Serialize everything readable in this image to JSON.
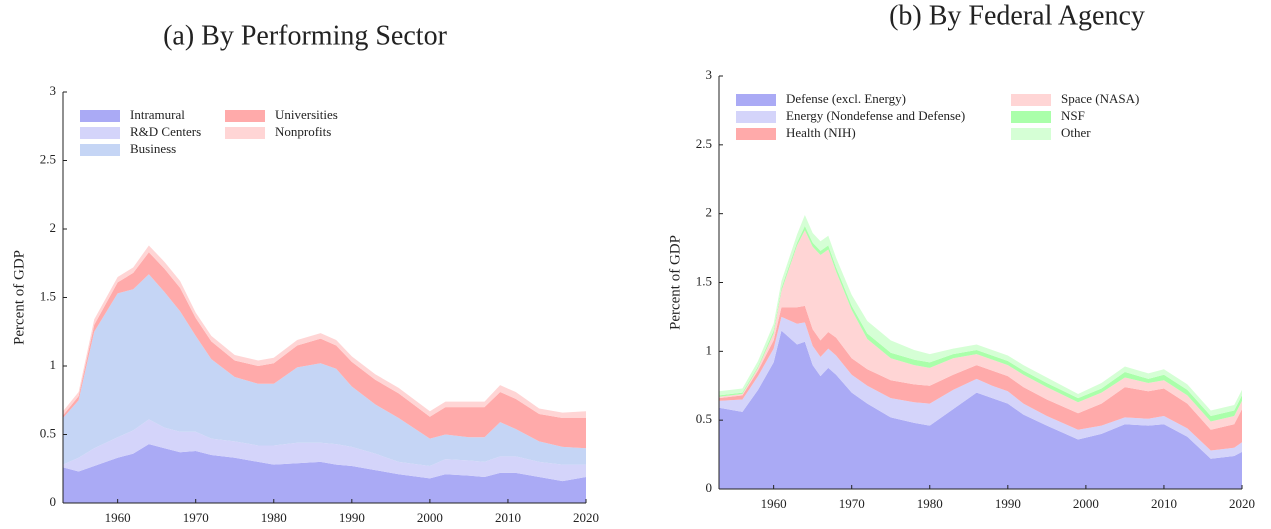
{
  "chart_data": [
    {
      "type": "stacked-area",
      "title": "(a) By Performing Sector",
      "y_label": "Percent of GDP",
      "x": [
        1953,
        1955,
        1957,
        1960,
        1962,
        1964,
        1966,
        1968,
        1970,
        1972,
        1975,
        1978,
        1980,
        1983,
        1986,
        1988,
        1990,
        1993,
        1996,
        2000,
        2002,
        2005,
        2007,
        2009,
        2011,
        2014,
        2017,
        2020
      ],
      "series": [
        {
          "name": "Intramural",
          "color": "#aaaaf5",
          "values": [
            0.26,
            0.23,
            0.27,
            0.33,
            0.36,
            0.43,
            0.4,
            0.37,
            0.38,
            0.35,
            0.33,
            0.3,
            0.28,
            0.29,
            0.3,
            0.28,
            0.27,
            0.24,
            0.21,
            0.18,
            0.21,
            0.2,
            0.19,
            0.22,
            0.22,
            0.19,
            0.16,
            0.19
          ]
        },
        {
          "name": "R&D Centers",
          "color": "#d4d4fa",
          "values": [
            0.02,
            0.1,
            0.13,
            0.15,
            0.17,
            0.18,
            0.15,
            0.15,
            0.14,
            0.12,
            0.12,
            0.12,
            0.14,
            0.15,
            0.14,
            0.15,
            0.14,
            0.12,
            0.09,
            0.09,
            0.11,
            0.11,
            0.11,
            0.12,
            0.12,
            0.11,
            0.12,
            0.09
          ]
        },
        {
          "name": "Business",
          "color": "#c5d5f5",
          "values": [
            0.34,
            0.42,
            0.85,
            1.05,
            1.03,
            1.06,
            0.99,
            0.88,
            0.7,
            0.58,
            0.47,
            0.45,
            0.45,
            0.55,
            0.58,
            0.55,
            0.44,
            0.36,
            0.32,
            0.2,
            0.18,
            0.17,
            0.18,
            0.25,
            0.2,
            0.15,
            0.13,
            0.12
          ]
        },
        {
          "name": "Universities",
          "color": "#ffaaaa",
          "values": [
            0.02,
            0.03,
            0.05,
            0.08,
            0.12,
            0.16,
            0.17,
            0.17,
            0.13,
            0.13,
            0.12,
            0.13,
            0.15,
            0.16,
            0.18,
            0.17,
            0.18,
            0.18,
            0.18,
            0.16,
            0.2,
            0.22,
            0.22,
            0.22,
            0.22,
            0.2,
            0.21,
            0.22
          ]
        },
        {
          "name": "Nonprofits",
          "color": "#ffd5d5",
          "values": [
            0.03,
            0.03,
            0.04,
            0.04,
            0.04,
            0.05,
            0.05,
            0.05,
            0.04,
            0.04,
            0.04,
            0.04,
            0.04,
            0.04,
            0.04,
            0.04,
            0.04,
            0.04,
            0.04,
            0.04,
            0.04,
            0.04,
            0.04,
            0.05,
            0.05,
            0.04,
            0.04,
            0.05
          ]
        }
      ],
      "xlim": [
        1953,
        2020
      ],
      "xticks": [
        1960,
        1970,
        1980,
        1990,
        2000,
        2010,
        2020
      ],
      "ylim": [
        0,
        3
      ],
      "yticks": [
        0,
        0.5,
        1,
        1.5,
        2,
        2.5,
        3
      ]
    },
    {
      "type": "stacked-area",
      "title": "(b) By Federal Agency",
      "y_label": "Percent of GDP",
      "x": [
        1953,
        1956,
        1958,
        1960,
        1961,
        1963,
        1964,
        1965,
        1966,
        1967,
        1968,
        1970,
        1972,
        1975,
        1978,
        1980,
        1983,
        1986,
        1988,
        1990,
        1992,
        1995,
        1999,
        2002,
        2005,
        2008,
        2010,
        2013,
        2016,
        2019,
        2020
      ],
      "series": [
        {
          "name": "Defense (excl. Energy)",
          "color": "#aaaaf5",
          "values": [
            0.59,
            0.56,
            0.72,
            0.92,
            1.15,
            1.05,
            1.07,
            0.9,
            0.82,
            0.88,
            0.83,
            0.7,
            0.62,
            0.52,
            0.48,
            0.46,
            0.58,
            0.7,
            0.66,
            0.62,
            0.54,
            0.46,
            0.36,
            0.4,
            0.47,
            0.46,
            0.47,
            0.38,
            0.22,
            0.24,
            0.27
          ]
        },
        {
          "name": "Energy (Nondefense and Defense)",
          "color": "#d4d4fa",
          "values": [
            0.05,
            0.09,
            0.1,
            0.1,
            0.1,
            0.15,
            0.14,
            0.14,
            0.14,
            0.14,
            0.14,
            0.13,
            0.13,
            0.14,
            0.15,
            0.16,
            0.14,
            0.1,
            0.09,
            0.09,
            0.08,
            0.07,
            0.07,
            0.06,
            0.05,
            0.05,
            0.06,
            0.06,
            0.06,
            0.06,
            0.07
          ]
        },
        {
          "name": "Health (NIH)",
          "color": "#ffaaaa",
          "values": [
            0.02,
            0.03,
            0.04,
            0.06,
            0.07,
            0.12,
            0.12,
            0.12,
            0.12,
            0.12,
            0.13,
            0.12,
            0.12,
            0.13,
            0.13,
            0.13,
            0.11,
            0.1,
            0.11,
            0.11,
            0.12,
            0.12,
            0.12,
            0.16,
            0.22,
            0.2,
            0.2,
            0.18,
            0.15,
            0.17,
            0.24
          ]
        },
        {
          "name": "Space (NASA)",
          "color": "#ffd5d5",
          "values": [
            0.01,
            0.01,
            0.02,
            0.05,
            0.12,
            0.45,
            0.55,
            0.6,
            0.62,
            0.6,
            0.48,
            0.35,
            0.22,
            0.16,
            0.14,
            0.13,
            0.12,
            0.08,
            0.08,
            0.08,
            0.09,
            0.09,
            0.08,
            0.08,
            0.07,
            0.06,
            0.06,
            0.06,
            0.06,
            0.06,
            0.06
          ]
        },
        {
          "name": "NSF",
          "color": "#aaffaa",
          "values": [
            0.01,
            0.01,
            0.01,
            0.02,
            0.02,
            0.02,
            0.03,
            0.03,
            0.03,
            0.03,
            0.03,
            0.03,
            0.04,
            0.04,
            0.04,
            0.04,
            0.03,
            0.03,
            0.03,
            0.03,
            0.03,
            0.03,
            0.03,
            0.03,
            0.04,
            0.03,
            0.04,
            0.04,
            0.04,
            0.04,
            0.04
          ]
        },
        {
          "name": "Other",
          "color": "#d5ffd5",
          "values": [
            0.03,
            0.03,
            0.04,
            0.05,
            0.05,
            0.06,
            0.08,
            0.07,
            0.07,
            0.07,
            0.07,
            0.08,
            0.09,
            0.09,
            0.07,
            0.06,
            0.04,
            0.04,
            0.04,
            0.04,
            0.04,
            0.04,
            0.03,
            0.04,
            0.04,
            0.04,
            0.04,
            0.04,
            0.04,
            0.04,
            0.04
          ]
        }
      ],
      "xlim": [
        1953,
        2020
      ],
      "xticks": [
        1960,
        1970,
        1980,
        1990,
        2000,
        2010,
        2020
      ],
      "ylim": [
        0,
        3
      ],
      "yticks": [
        0,
        0.5,
        1,
        1.5,
        2,
        2.5,
        3
      ]
    }
  ]
}
